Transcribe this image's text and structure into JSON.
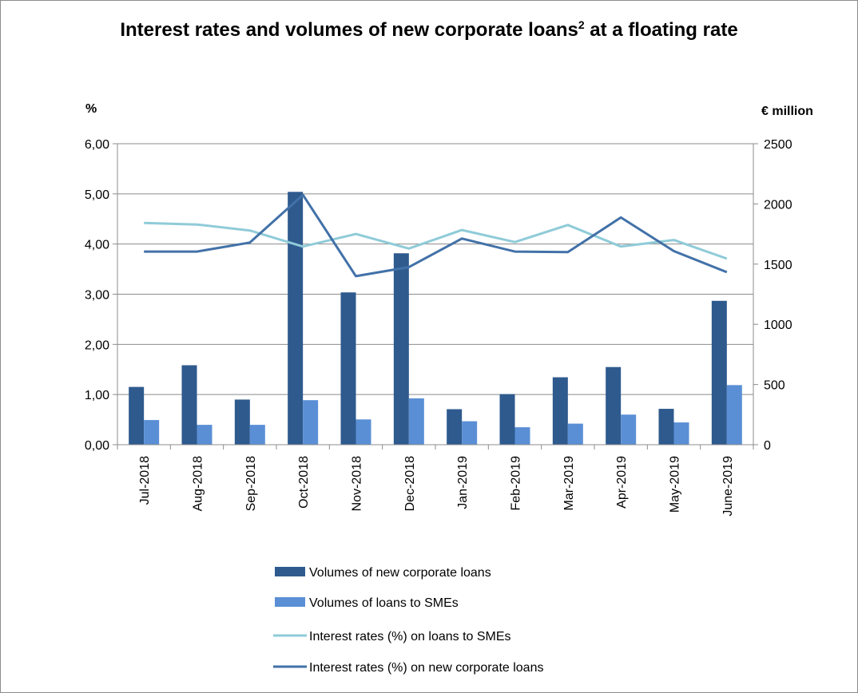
{
  "chart_data": {
    "type": "bar",
    "title_main": "Interest rates and volumes of new corporate loans",
    "title_sup": "2",
    "title_rest": " at a floating rate",
    "ylabel_left": "%",
    "ylabel_right": "€ million",
    "y_left_ticks": [
      "0,00",
      "1,00",
      "2,00",
      "3,00",
      "4,00",
      "5,00",
      "6,00"
    ],
    "y_right_ticks": [
      "0",
      "500",
      "1000",
      "1500",
      "2000",
      "2500"
    ],
    "ylim_left": [
      0,
      6
    ],
    "ylim_right": [
      0,
      2500
    ],
    "grid": true,
    "legend_position": "bottom",
    "categories": [
      "Jul-2018",
      "Aug-2018",
      "Sep-2018",
      "Oct-2018",
      "Nov-2018",
      "Dec-2018",
      "Jan-2019",
      "Feb-2019",
      "Mar-2019",
      "Apr-2019",
      "May-2019",
      "June-2019"
    ],
    "bar_series": [
      {
        "name": "Volumes of new corporate loans",
        "axis": "right",
        "color": "#2e5a8e",
        "values": [
          480,
          660,
          375,
          2100,
          1265,
          1590,
          295,
          420,
          560,
          645,
          298,
          1195
        ]
      },
      {
        "name": "Volumes of loans to SMEs",
        "axis": "right",
        "color": "#5a8fd6",
        "values": [
          205,
          165,
          165,
          370,
          210,
          385,
          195,
          145,
          175,
          250,
          185,
          495
        ]
      }
    ],
    "line_series": [
      {
        "name": "Interest rates (%) on loans to SMEs",
        "axis": "left",
        "color": "#8fcbd8",
        "values": [
          4.42,
          4.39,
          4.27,
          3.95,
          4.2,
          3.91,
          4.28,
          4.04,
          4.38,
          3.95,
          4.08,
          3.71
        ]
      },
      {
        "name": "Interest rates (%) on new corporate loans",
        "axis": "left",
        "color": "#4271a8",
        "values": [
          3.85,
          3.85,
          4.03,
          4.98,
          3.36,
          3.54,
          4.11,
          3.85,
          3.84,
          4.53,
          3.86,
          3.44
        ]
      }
    ]
  }
}
